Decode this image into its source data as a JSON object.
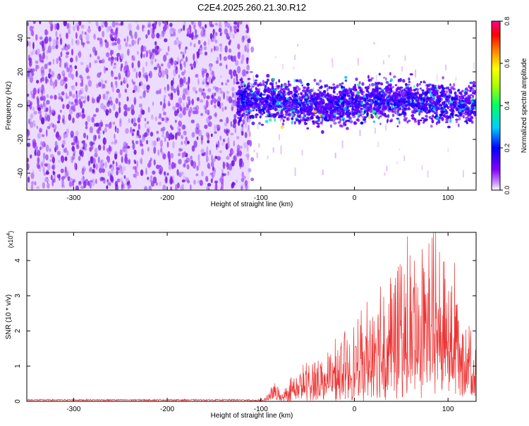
{
  "title": "C2E4.2025.260.21.30.R12",
  "chart_data": [
    {
      "type": "heatmap",
      "xlabel": "Height of straight line (km)",
      "ylabel": "Frequency (Hz)",
      "xlim": [
        -350,
        130
      ],
      "ylim": [
        -50,
        50
      ],
      "xticks": [
        -300,
        -200,
        -100,
        0,
        100
      ],
      "yticks": [
        -40,
        -20,
        0,
        20,
        40
      ],
      "noise_region_x": [
        -350,
        -112
      ],
      "signal_band_center_hz": 2,
      "signal_band_halfwidth_hz": 8,
      "colorbar": {
        "label": "Normalized spectral amplitude",
        "range": [
          0.0,
          0.8
        ],
        "ticks": [
          0.0,
          0.2,
          0.4,
          0.6,
          0.8
        ],
        "tick_labels": [
          "0.0",
          "0.2",
          "0.4",
          "0.6",
          "0.8"
        ],
        "colors": [
          "#ffffff",
          "#8800ff",
          "#0000ff",
          "#00ffff",
          "#00ff00",
          "#ffff00",
          "#ff8800",
          "#ff0000",
          "#ff0088"
        ]
      }
    },
    {
      "type": "line",
      "xlabel": "Height of straight line (km)",
      "ylabel": "SNR (10 * v/v)",
      "multiplier": "(x10⁴)",
      "multiplier_base": "(x10",
      "multiplier_exp": "4",
      "multiplier_close": ")",
      "xlim": [
        -350,
        130
      ],
      "ylim": [
        0,
        4.8
      ],
      "xticks": [
        -300,
        -200,
        -100,
        0,
        100
      ],
      "yticks": [
        0,
        1,
        2,
        3,
        4
      ],
      "line_color": "#ee3333",
      "envelope": {
        "x": [
          -350,
          -110,
          -95,
          -90,
          -85,
          -80,
          -75,
          -60,
          -40,
          -20,
          0,
          20,
          40,
          60,
          80,
          100,
          115,
          130
        ],
        "y": [
          0.05,
          0.05,
          0.1,
          0.35,
          0.6,
          0.25,
          0.35,
          0.9,
          1.3,
          1.5,
          2.1,
          2.8,
          3.6,
          4.1,
          4.5,
          4.3,
          3.3,
          2.0
        ]
      }
    }
  ]
}
